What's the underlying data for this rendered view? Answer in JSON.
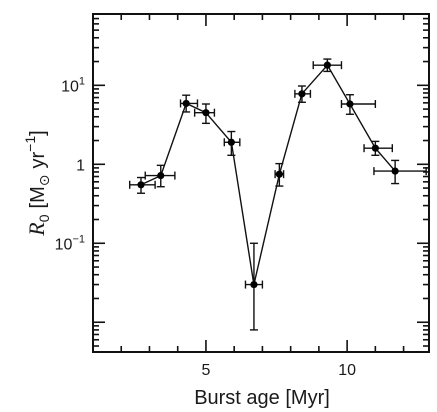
{
  "chart_data": {
    "type": "line",
    "xlabel": "Burst age [Myr]",
    "ylabel_parts": {
      "symbol": "R",
      "subscript": "0",
      "unit_open": "[M",
      "sun": "⊙",
      "unit_mid": "yr",
      "exponent": "−1",
      "unit_close": "]"
    },
    "x_scale": "linear",
    "y_scale": "log",
    "xlim": [
      1.0,
      12.9
    ],
    "ylim": [
      0.0042,
      80
    ],
    "x_ticks": [
      {
        "value": 5,
        "label": "5"
      },
      {
        "value": 10,
        "label": "10"
      }
    ],
    "y_ticks": [
      {
        "value": 0.1,
        "base": "10",
        "exp": "−1"
      },
      {
        "value": 1,
        "base": "1",
        "exp": ""
      },
      {
        "value": 10,
        "base": "10",
        "exp": "1"
      }
    ],
    "series": [
      {
        "points": [
          {
            "x": 2.7,
            "y": 0.55,
            "xerr": [
              0.4,
              0.5
            ],
            "yerr": [
              0.12,
              0.13
            ]
          },
          {
            "x": 3.4,
            "y": 0.72,
            "xerr": [
              0.55,
              0.5
            ],
            "yerr": [
              0.2,
              0.25
            ]
          },
          {
            "x": 4.3,
            "y": 5.9,
            "xerr": [
              0.2,
              0.4
            ],
            "yerr": [
              1.3,
              1.6
            ]
          },
          {
            "x": 5.0,
            "y": 4.5,
            "xerr": [
              0.4,
              0.3
            ],
            "yerr": [
              1.2,
              1.3
            ]
          },
          {
            "x": 5.9,
            "y": 1.9,
            "xerr": [
              0.25,
              0.3
            ],
            "yerr": [
              0.6,
              0.7
            ]
          },
          {
            "x": 6.7,
            "y": 0.03,
            "xerr": [
              0.3,
              0.3
            ],
            "yerr": [
              0.022,
              0.07
            ]
          },
          {
            "x": 7.6,
            "y": 0.75,
            "xerr": [
              0.15,
              0.15
            ],
            "yerr": [
              0.22,
              0.27
            ]
          },
          {
            "x": 8.4,
            "y": 7.8,
            "xerr": [
              0.25,
              0.3
            ],
            "yerr": [
              1.7,
              2.0
            ]
          },
          {
            "x": 9.3,
            "y": 18.0,
            "xerr": [
              0.5,
              0.5
            ],
            "yerr": [
              3.0,
              3.5
            ]
          },
          {
            "x": 10.1,
            "y": 5.8,
            "xerr": [
              0.3,
              0.9
            ],
            "yerr": [
              1.5,
              1.8
            ]
          },
          {
            "x": 11.0,
            "y": 1.6,
            "xerr": [
              0.4,
              0.6
            ],
            "yerr": [
              0.3,
              0.35
            ]
          },
          {
            "x": 11.7,
            "y": 0.82,
            "xerr": [
              0.75,
              1.1
            ],
            "yerr": [
              0.25,
              0.3
            ]
          }
        ]
      }
    ],
    "grid": false,
    "legend": false,
    "minor_ticks": true
  }
}
